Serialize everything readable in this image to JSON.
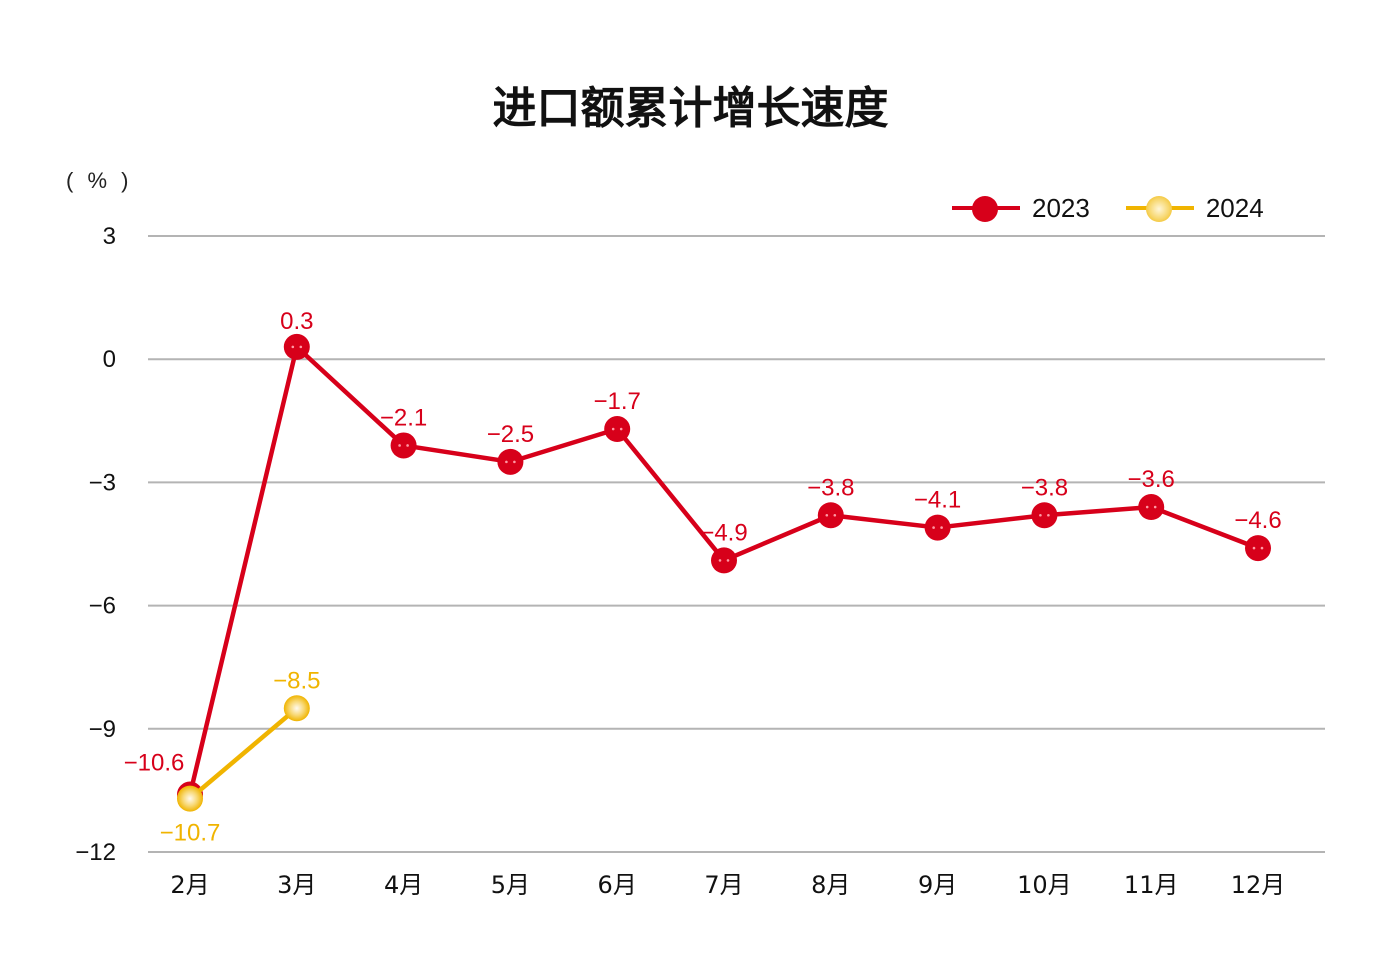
{
  "chart_data": {
    "type": "line",
    "title": "进口额累计增长速度",
    "ylabel": "( % )",
    "xlabel": "",
    "categories": [
      "2月",
      "3月",
      "4月",
      "5月",
      "6月",
      "7月",
      "8月",
      "9月",
      "10月",
      "11月",
      "12月"
    ],
    "series": [
      {
        "name": "2023",
        "color": "#d7001a",
        "values": [
          -10.6,
          0.3,
          -2.1,
          -2.5,
          -1.7,
          -4.9,
          -3.8,
          -4.1,
          -3.8,
          -3.6,
          -4.6
        ]
      },
      {
        "name": "2024",
        "color": "#f0b400",
        "values": [
          -10.7,
          -8.5,
          null,
          null,
          null,
          null,
          null,
          null,
          null,
          null,
          null
        ]
      }
    ],
    "yticks": [
      3,
      0,
      -3,
      -6,
      -9,
      -12
    ],
    "ytick_labels": [
      "3",
      "0",
      "−3",
      "−6",
      "−9",
      "−12"
    ],
    "ylim": [
      -12,
      3
    ],
    "grid": true,
    "legend_position": "top-right"
  },
  "title": "进口额累计增长速度",
  "unit": "( % )",
  "legend": [
    {
      "label": "2023",
      "color": "#d7001a"
    },
    {
      "label": "2024",
      "color": "#f0b400"
    }
  ]
}
